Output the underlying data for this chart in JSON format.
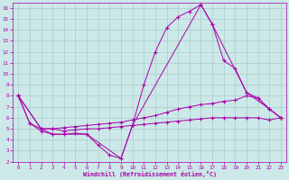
{
  "xlabel": "Windchill (Refroidissement éolien,°C)",
  "bg_color": "#cce8e8",
  "line_color": "#aa00aa",
  "grid_color": "#aacccc",
  "xlim": [
    -0.5,
    23.5
  ],
  "ylim": [
    2,
    16.5
  ],
  "xticks": [
    0,
    1,
    2,
    3,
    4,
    5,
    6,
    7,
    8,
    9,
    10,
    11,
    12,
    13,
    14,
    15,
    16,
    17,
    18,
    19,
    20,
    21,
    22,
    23
  ],
  "yticks": [
    2,
    3,
    4,
    5,
    6,
    7,
    8,
    9,
    10,
    11,
    12,
    13,
    14,
    15,
    16
  ],
  "series1": [
    [
      0,
      8.0
    ],
    [
      1,
      5.5
    ],
    [
      2,
      4.8
    ],
    [
      3,
      4.5
    ],
    [
      4,
      4.5
    ],
    [
      5,
      4.6
    ],
    [
      6,
      4.5
    ],
    [
      7,
      3.5
    ],
    [
      8,
      2.6
    ],
    [
      9,
      2.3
    ],
    [
      10,
      5.3
    ],
    [
      11,
      9.0
    ],
    [
      12,
      12.0
    ],
    [
      13,
      14.2
    ],
    [
      14,
      15.2
    ],
    [
      15,
      15.7
    ],
    [
      16,
      16.3
    ],
    [
      17,
      14.5
    ],
    [
      18,
      11.2
    ],
    [
      19,
      10.5
    ],
    [
      20,
      8.3
    ],
    [
      21,
      7.8
    ],
    [
      22,
      6.8
    ],
    [
      23,
      6.0
    ]
  ],
  "series2": [
    [
      0,
      8.0
    ],
    [
      1,
      5.5
    ],
    [
      2,
      5.0
    ],
    [
      3,
      5.0
    ],
    [
      4,
      5.1
    ],
    [
      5,
      5.2
    ],
    [
      6,
      5.3
    ],
    [
      7,
      5.4
    ],
    [
      8,
      5.5
    ],
    [
      9,
      5.6
    ],
    [
      10,
      5.8
    ],
    [
      11,
      6.0
    ],
    [
      12,
      6.2
    ],
    [
      13,
      6.5
    ],
    [
      14,
      6.8
    ],
    [
      15,
      7.0
    ],
    [
      16,
      7.2
    ],
    [
      17,
      7.3
    ],
    [
      18,
      7.5
    ],
    [
      19,
      7.6
    ],
    [
      20,
      8.0
    ],
    [
      21,
      7.8
    ],
    [
      22,
      6.8
    ],
    [
      23,
      6.0
    ]
  ],
  "series3": [
    [
      0,
      8.0
    ],
    [
      2,
      5.0
    ],
    [
      3,
      4.5
    ],
    [
      6,
      4.5
    ],
    [
      9,
      2.3
    ],
    [
      10,
      5.3
    ],
    [
      16,
      16.3
    ],
    [
      17,
      14.5
    ],
    [
      20,
      8.3
    ],
    [
      22,
      6.8
    ],
    [
      23,
      6.0
    ]
  ],
  "series4": [
    [
      0,
      8.0
    ],
    [
      2,
      5.0
    ],
    [
      3,
      5.0
    ],
    [
      4,
      4.8
    ],
    [
      5,
      4.9
    ],
    [
      6,
      5.0
    ],
    [
      7,
      5.0
    ],
    [
      8,
      5.1
    ],
    [
      9,
      5.2
    ],
    [
      10,
      5.3
    ],
    [
      11,
      5.4
    ],
    [
      12,
      5.5
    ],
    [
      13,
      5.6
    ],
    [
      14,
      5.7
    ],
    [
      15,
      5.8
    ],
    [
      16,
      5.9
    ],
    [
      17,
      6.0
    ],
    [
      18,
      6.0
    ],
    [
      19,
      6.0
    ],
    [
      20,
      6.0
    ],
    [
      21,
      6.0
    ],
    [
      22,
      5.8
    ],
    [
      23,
      6.0
    ]
  ]
}
